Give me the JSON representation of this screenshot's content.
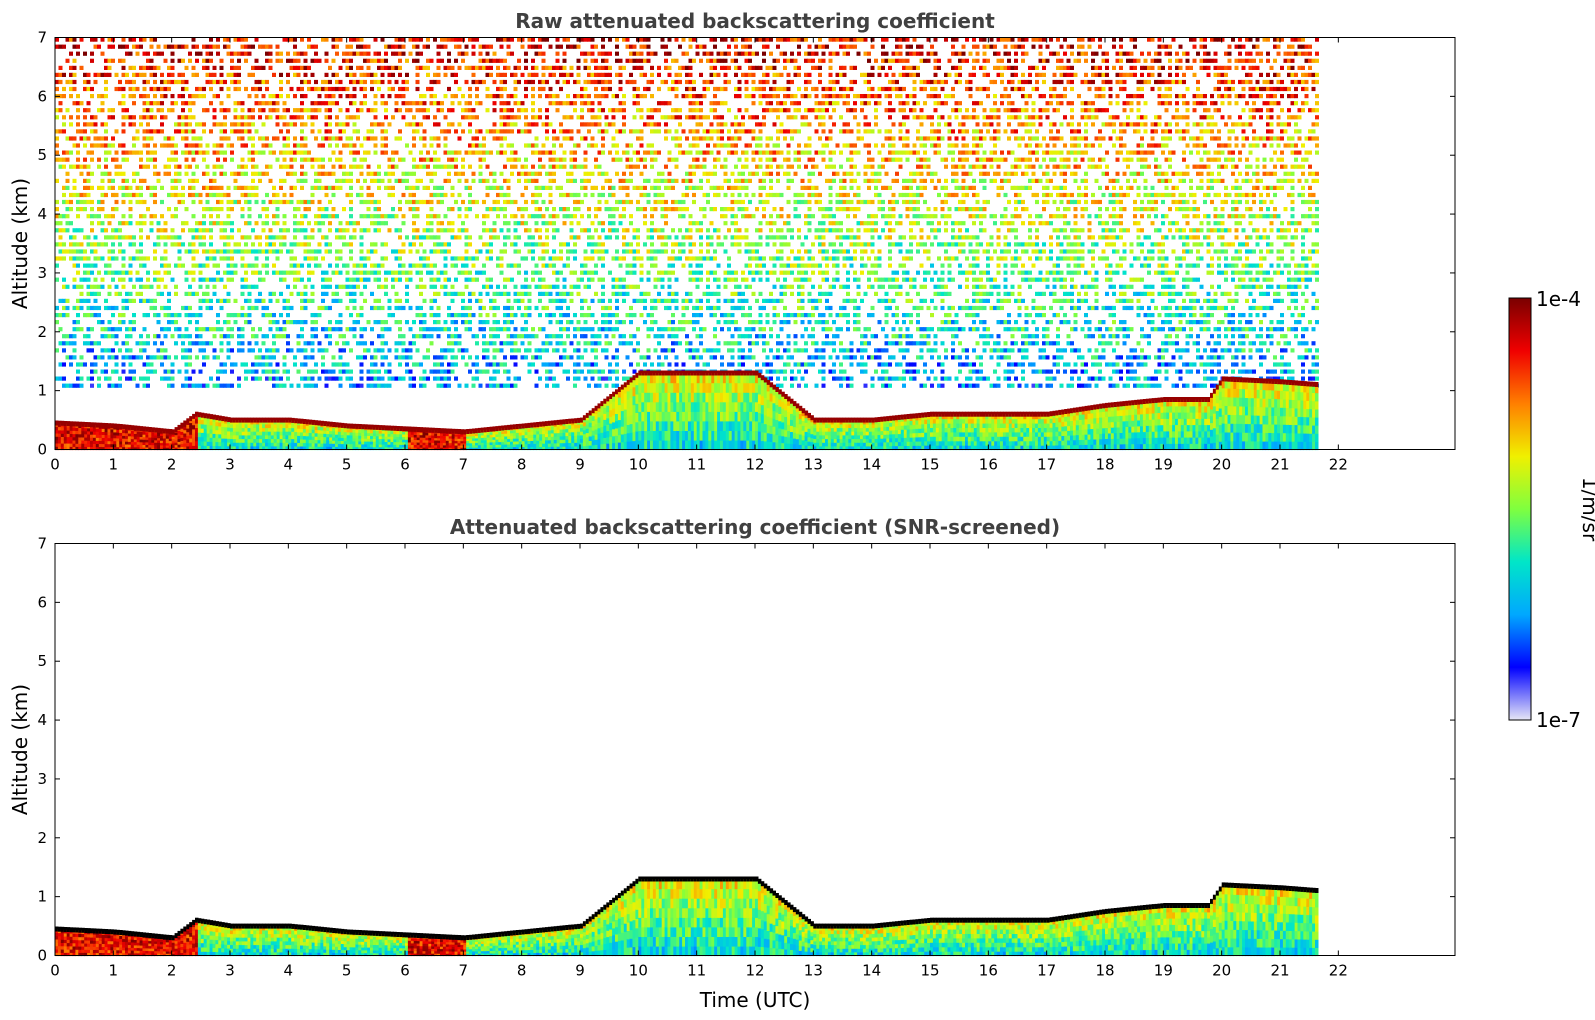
{
  "chart_data": [
    {
      "type": "heatmap",
      "title": "Raw attenuated backscattering coefficient",
      "xlabel": "",
      "ylabel": "Altitude (km)",
      "xlim": [
        0,
        24
      ],
      "ylim": [
        0,
        7
      ],
      "x_ticks": [
        "0",
        "1",
        "2",
        "3",
        "4",
        "5",
        "6",
        "7",
        "8",
        "9",
        "10",
        "11",
        "12",
        "13",
        "14",
        "15",
        "16",
        "17",
        "18",
        "19",
        "20",
        "21",
        "22"
      ],
      "y_ticks": [
        "0",
        "1",
        "2",
        "3",
        "4",
        "5",
        "6",
        "7"
      ],
      "data_end_time": 21.65,
      "screened": false,
      "boundary_layer_top_km": {
        "time": [
          0,
          1,
          2,
          2.4,
          3,
          4,
          5,
          6,
          7,
          8,
          9,
          10,
          11,
          12,
          13,
          14,
          15,
          16,
          17,
          18,
          19,
          19.75,
          20,
          21,
          21.65
        ],
        "value": [
          0.45,
          0.4,
          0.3,
          0.6,
          0.5,
          0.5,
          0.4,
          0.35,
          0.3,
          0.4,
          0.5,
          1.3,
          1.3,
          1.3,
          0.5,
          0.5,
          0.6,
          0.6,
          0.6,
          0.75,
          0.85,
          0.85,
          1.2,
          1.15,
          1.1
        ]
      }
    },
    {
      "type": "heatmap",
      "title": "Attenuated backscattering coefficient (SNR-screened)",
      "xlabel": "Time (UTC)",
      "ylabel": "Altitude (km)",
      "xlim": [
        0,
        24
      ],
      "ylim": [
        0,
        7
      ],
      "x_ticks": [
        "0",
        "1",
        "2",
        "3",
        "4",
        "5",
        "6",
        "7",
        "8",
        "9",
        "10",
        "11",
        "12",
        "13",
        "14",
        "15",
        "16",
        "17",
        "18",
        "19",
        "20",
        "21",
        "22"
      ],
      "y_ticks": [
        "0",
        "1",
        "2",
        "3",
        "4",
        "5",
        "6",
        "7"
      ],
      "data_end_time": 21.65,
      "screened": true
    }
  ],
  "colorbar": {
    "label": "1/m/sr",
    "max_label": "1e-4",
    "min_label": "1e-7",
    "scale": "log",
    "range": [
      1e-07,
      0.0001
    ],
    "colormap": [
      "#e6e6f6",
      "#0000ff",
      "#00a8ff",
      "#00e6c8",
      "#7fff3f",
      "#f0f000",
      "#ff7f00",
      "#f00000",
      "#7a0000"
    ]
  }
}
